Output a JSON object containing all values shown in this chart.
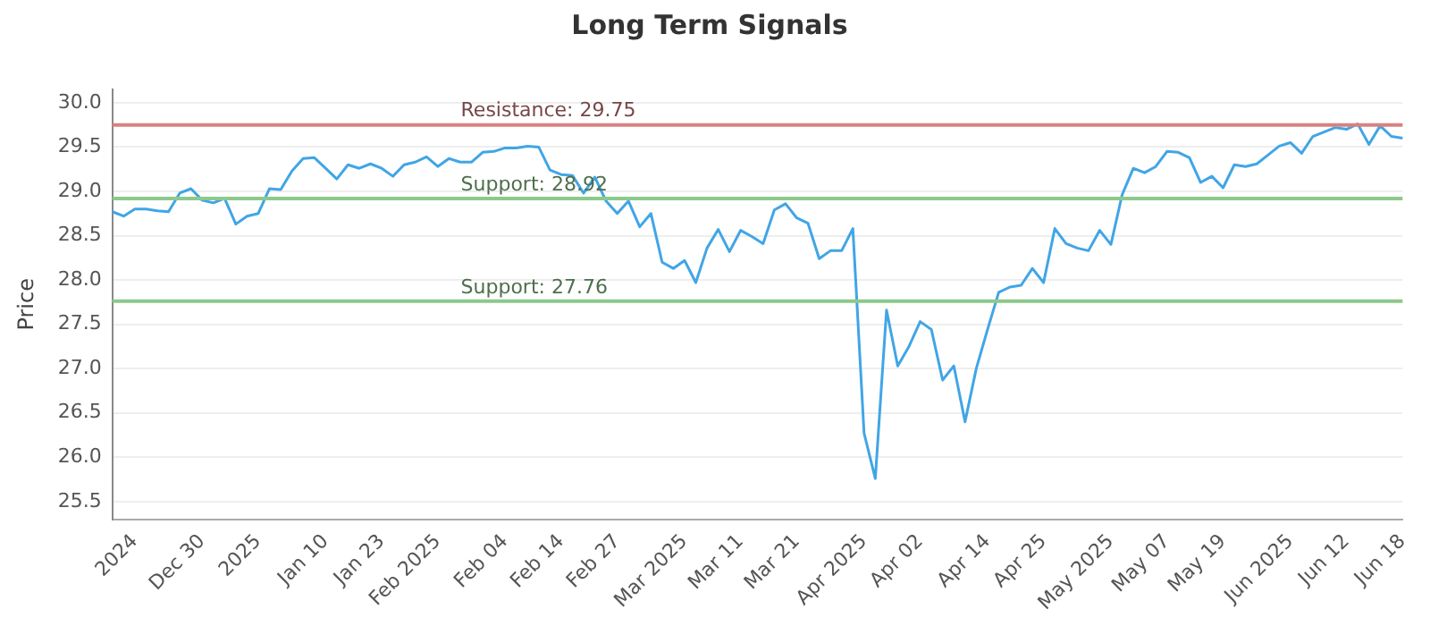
{
  "chart_data": {
    "type": "line",
    "title": "Long Term Signals",
    "ylabel": "Price",
    "categories": [
      null,
      null,
      "2024",
      null,
      null,
      null,
      null,
      null,
      "Dec 30",
      null,
      null,
      null,
      null,
      "2025",
      null,
      null,
      null,
      null,
      null,
      "Jan 10",
      null,
      null,
      null,
      null,
      "Jan 23",
      null,
      null,
      null,
      null,
      "Feb 2025",
      null,
      null,
      null,
      null,
      null,
      "Feb 04",
      null,
      null,
      null,
      null,
      "Feb 14",
      null,
      null,
      null,
      null,
      "Feb 27",
      null,
      null,
      null,
      null,
      null,
      "Mar 2025",
      null,
      null,
      null,
      null,
      "Mar 11",
      null,
      null,
      null,
      null,
      "Mar 21",
      null,
      null,
      null,
      null,
      null,
      "Apr 2025",
      null,
      null,
      null,
      null,
      "Apr 02",
      null,
      null,
      null,
      null,
      null,
      "Apr 14",
      null,
      null,
      null,
      null,
      "Apr 25",
      null,
      null,
      null,
      null,
      null,
      "May 2025",
      null,
      null,
      null,
      null,
      "May 07",
      null,
      null,
      null,
      null,
      "May 19",
      null,
      null,
      null,
      null,
      null,
      "Jun 2025",
      null,
      null,
      null,
      null,
      "Jun 12",
      null,
      null,
      null,
      null,
      "Jun 18"
    ],
    "series": [
      {
        "color": "#41a5e6",
        "values": [
          28.77,
          28.72,
          28.8,
          28.8,
          28.78,
          28.77,
          28.98,
          29.03,
          28.9,
          28.87,
          28.92,
          28.63,
          28.72,
          28.75,
          29.03,
          29.02,
          29.23,
          29.37,
          29.38,
          29.26,
          29.14,
          29.3,
          29.26,
          29.31,
          29.26,
          29.17,
          29.3,
          29.33,
          29.39,
          29.28,
          29.37,
          29.33,
          29.33,
          29.44,
          29.45,
          29.49,
          29.49,
          29.51,
          29.5,
          29.24,
          29.19,
          29.18,
          28.98,
          29.16,
          28.89,
          28.75,
          28.89,
          28.6,
          28.75,
          28.2,
          28.13,
          28.22,
          27.97,
          28.36,
          28.57,
          28.32,
          28.56,
          28.49,
          28.41,
          28.79,
          28.86,
          28.7,
          28.64,
          28.24,
          28.33,
          28.33,
          28.58,
          26.27,
          25.76,
          27.66,
          27.03,
          27.25,
          27.53,
          27.44,
          26.87,
          27.03,
          26.4,
          27.0,
          27.44,
          27.86,
          27.92,
          27.94,
          28.13,
          27.97,
          28.58,
          28.41,
          28.36,
          28.33,
          28.56,
          28.4,
          28.96,
          29.26,
          29.21,
          29.28,
          29.45,
          29.44,
          29.38,
          29.1,
          29.17,
          29.04,
          29.3,
          29.28,
          29.31,
          29.41,
          29.51,
          29.55,
          29.43,
          29.62,
          29.67,
          29.72,
          29.7,
          29.76,
          29.53,
          29.74,
          29.62,
          29.6
        ]
      }
    ],
    "ylim": [
      25.3,
      30.15
    ],
    "yticks": [
      25.5,
      {
        "value": 26,
        "label": "26.0"
      },
      26.5,
      {
        "value": 27,
        "label": "27.0"
      },
      27.5,
      {
        "value": 28,
        "label": "28.0"
      },
      28.5,
      {
        "value": 29,
        "label": "29.0"
      },
      29.5,
      {
        "value": 30,
        "label": "30.0"
      }
    ],
    "ref_lines": [
      {
        "axis": "y",
        "value": 29.75,
        "label": "Resistance: 29.75",
        "color": "#d98080"
      },
      {
        "axis": "y",
        "value": 28.92,
        "label": "Support: 28.92",
        "color": "#8cc98c"
      },
      {
        "axis": "y",
        "value": 27.76,
        "label": "Support: 27.76",
        "color": "#8cc98c"
      }
    ],
    "grid": "y",
    "legend": false,
    "marker": "none",
    "line_style": "solid"
  }
}
